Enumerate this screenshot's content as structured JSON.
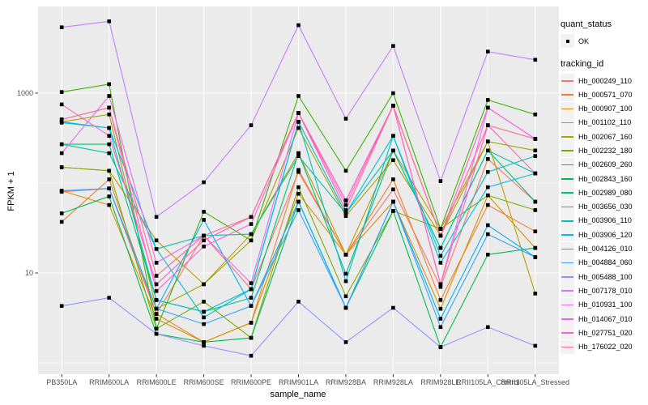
{
  "chart_data": {
    "type": "line",
    "title": "",
    "xlabel": "sample_name",
    "ylabel": "FPKM + 1",
    "y_scale": "log10",
    "y_major_ticks": [
      {
        "label": "10",
        "value": 10
      },
      {
        "label": "1000",
        "value": 1000
      }
    ],
    "y_minor_ticks": [
      1,
      100,
      10000
    ],
    "ylim": [
      0.75,
      9500
    ],
    "grid": true,
    "legend_position": "right",
    "categories": [
      "PB350LA",
      "RRIM600LA",
      "RRIM600LE",
      "RRIM600SE",
      "RRIM600PE",
      "RRIM901LA",
      "RRIM928BA",
      "RRIM928LA",
      "RRIM928LE",
      "RRII105LA_Control",
      "RRII105LA_Stressed"
    ],
    "series": [
      {
        "name": "Hb_000249_110",
        "color": "#F8766D",
        "values": [
          80,
          87,
          3.5,
          26,
          6.6,
          133,
          16,
          85,
          7.0,
          185,
          62
        ]
      },
      {
        "name": "Hb_000571_070",
        "color": "#EA8331",
        "values": [
          37,
          110,
          3.5,
          1.7,
          2.8,
          140,
          16,
          110,
          5.0,
          57,
          29
        ]
      },
      {
        "name": "Hb_000907_100",
        "color": "#D89000",
        "values": [
          82,
          57,
          3.1,
          1.7,
          2.8,
          76,
          16,
          62,
          4.0,
          73,
          19
        ]
      },
      {
        "name": "Hb_001102_110",
        "color": "#C09B00",
        "values": [
          150,
          137,
          23,
          7.5,
          27,
          215,
          16,
          230,
          31,
          290,
          5.9
        ]
      },
      {
        "name": "Hb_002067_160",
        "color": "#A3A500",
        "values": [
          480,
          580,
          4.0,
          7.5,
          23,
          410,
          43,
          180,
          26,
          290,
          230
        ]
      },
      {
        "name": "Hb_002232_180",
        "color": "#7CAE00",
        "values": [
          150,
          137,
          2.4,
          4.8,
          1.9,
          90,
          5.5,
          49,
          31,
          73,
          50
        ]
      },
      {
        "name": "Hb_002609_260",
        "color": "#39B600",
        "values": [
          1030,
          1260,
          2.4,
          48,
          23,
          930,
          137,
          1000,
          31,
          840,
          580
        ]
      },
      {
        "name": "Hb_002843_160",
        "color": "#00BB4E",
        "values": [
          46,
          71,
          2.1,
          1.7,
          1.9,
          62,
          4.1,
          49,
          1.5,
          16,
          19
        ]
      },
      {
        "name": "Hb_002989_080",
        "color": "#00BF7D",
        "values": [
          270,
          270,
          5.0,
          3.7,
          5.3,
          215,
          9.8,
          230,
          19,
          230,
          62
        ]
      },
      {
        "name": "Hb_003656_030",
        "color": "#00C1A7",
        "values": [
          270,
          215,
          18.5,
          26,
          27,
          200,
          46,
          230,
          19,
          230,
          128
        ]
      },
      {
        "name": "Hb_003906_110",
        "color": "#00BFC4",
        "values": [
          480,
          410,
          5.0,
          3.7,
          6.6,
          480,
          8.1,
          335,
          15.5,
          133,
          200
        ]
      },
      {
        "name": "Hb_003906_120",
        "color": "#00BAE0",
        "values": [
          470,
          410,
          18.5,
          3.2,
          6.6,
          480,
          46,
          335,
          13,
          90,
          128
        ]
      },
      {
        "name": "Hb_004126_010",
        "color": "#00B0F6",
        "values": [
          82,
          87,
          4.0,
          39,
          4.3,
          62,
          4.1,
          62,
          3.1,
          34,
          15
        ]
      },
      {
        "name": "Hb_004884_060",
        "color": "#35A2FF",
        "values": [
          82,
          87,
          4.0,
          2.7,
          4.3,
          50,
          4.1,
          62,
          2.5,
          27,
          15
        ]
      },
      {
        "name": "Hb_005488_100",
        "color": "#9590FF",
        "values": [
          4.3,
          5.3,
          2.1,
          1.55,
          1.2,
          4.8,
          1.7,
          4.1,
          1.5,
          2.5,
          1.55
        ]
      },
      {
        "name": "Hb_007178_010",
        "color": "#C77CFF",
        "values": [
          5400,
          6300,
          42,
          102,
          440,
          5700,
          520,
          3350,
          105,
          2900,
          2350
        ]
      },
      {
        "name": "Hb_010931_100",
        "color": "#E76BF3",
        "values": [
          215,
          930,
          13,
          26,
          7.7,
          600,
          64,
          725,
          7.5,
          690,
          310
        ]
      },
      {
        "name": "Hb_014067_010",
        "color": "#FA62DB",
        "values": [
          510,
          690,
          6.3,
          19.7,
          35,
          600,
          57,
          725,
          26,
          690,
          310
        ]
      },
      {
        "name": "Hb_027751_020",
        "color": "#FF62BC",
        "values": [
          750,
          335,
          7.5,
          23,
          42,
          600,
          64,
          725,
          7.5,
          440,
          128
        ]
      },
      {
        "name": "Hb_176022_020",
        "color": "#FF6A98",
        "values": [
          510,
          690,
          9.3,
          26,
          42,
          600,
          50,
          725,
          26,
          440,
          310
        ]
      }
    ],
    "point_color": "#000000",
    "legend": {
      "quant_status": {
        "title": "quant_status",
        "items": [
          {
            "label": "OK",
            "marker": "point"
          }
        ]
      },
      "tracking_id": {
        "title": "tracking_id"
      }
    },
    "style": {
      "panel_bg": "#EBEBEB",
      "grid_color": "#FFFFFF",
      "legend_key_bg": "#F2F2F2",
      "tick_label_color": "#4D4D4D",
      "tick_mark_color": "#333333",
      "axis_title_color": "#000000"
    }
  }
}
